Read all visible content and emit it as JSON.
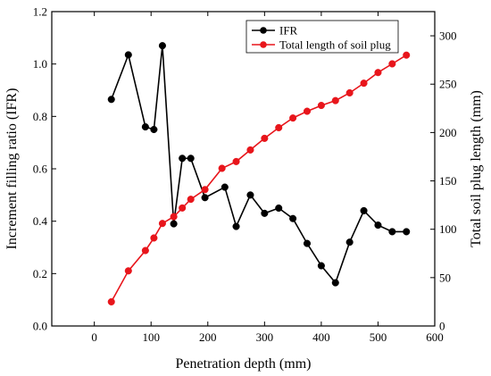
{
  "chart_data": {
    "type": "line",
    "title": "",
    "xlabel": "Penetration depth (mm)",
    "ylabel_left": "Increment filling ratio (IFR)",
    "ylabel_right": "Total soil plug length (mm)",
    "xlim": [
      -75,
      600
    ],
    "ylim_left": [
      0,
      1.2
    ],
    "ylim_right": [
      0,
      325
    ],
    "xticks": [
      0,
      100,
      200,
      300,
      400,
      500,
      600
    ],
    "yticks_left": [
      0.0,
      0.2,
      0.4,
      0.6,
      0.8,
      1.0,
      1.2
    ],
    "yticks_right": [
      0,
      50,
      100,
      150,
      200,
      250,
      300
    ],
    "legend_position": "top-center",
    "grid": false,
    "series": [
      {
        "name": "IFR",
        "axis": "left",
        "color": "#000000",
        "x": [
          30,
          60,
          90,
          105,
          120,
          140,
          155,
          170,
          195,
          230,
          250,
          275,
          300,
          325,
          350,
          375,
          400,
          425,
          450,
          475,
          500,
          525,
          550
        ],
        "y": [
          0.865,
          1.035,
          0.76,
          0.75,
          1.07,
          0.39,
          0.64,
          0.64,
          0.49,
          0.53,
          0.38,
          0.5,
          0.43,
          0.45,
          0.41,
          0.315,
          0.23,
          0.165,
          0.32,
          0.44,
          0.385,
          0.36,
          0.36
        ]
      },
      {
        "name": "Total length of soil plug",
        "axis": "right",
        "color": "#e8151b",
        "x": [
          30,
          60,
          90,
          105,
          120,
          140,
          155,
          170,
          195,
          225,
          250,
          275,
          300,
          325,
          350,
          375,
          400,
          425,
          450,
          475,
          500,
          525,
          550
        ],
        "y": [
          25,
          57,
          78,
          91,
          106,
          113,
          122,
          131,
          141,
          163,
          170,
          182,
          194,
          205,
          215,
          222,
          228,
          233,
          241,
          251,
          262,
          271,
          280
        ]
      }
    ]
  }
}
